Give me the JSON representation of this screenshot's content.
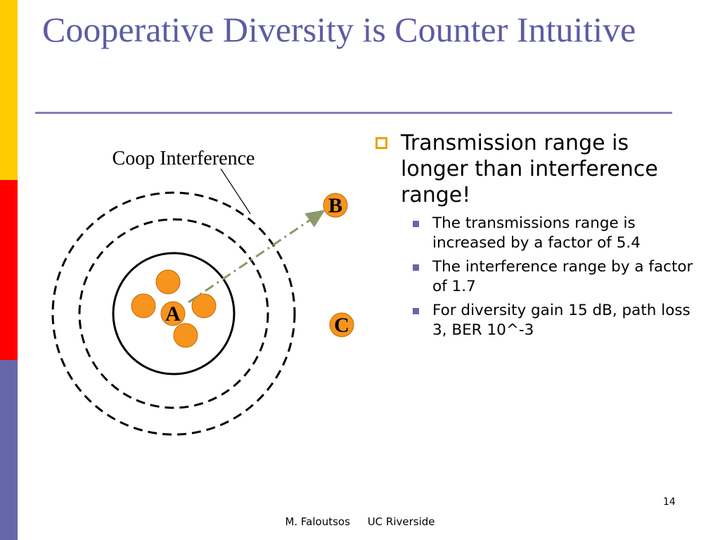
{
  "slide": {
    "title": "Cooperative Diversity is Counter Intuitive",
    "colors": {
      "title": "#5c5ca3",
      "sidebar": [
        "#ffcc00",
        "#ff0000",
        "#6666aa"
      ],
      "node": "#f7941d",
      "bullet": "#e8a400"
    }
  },
  "diagram": {
    "callout": "Coop Interference",
    "node_a": "A",
    "node_b": "B",
    "node_c": "C"
  },
  "bullets": {
    "main": "Transmission range is longer than interference range!",
    "sub": [
      "The transmissions range is increased by a factor of 5.4",
      "The interference range by a factor of 1.7",
      "For diversity gain 15 dB, path loss 3, BER 10^-3"
    ]
  },
  "footer": {
    "slide_number": "14",
    "author": "M. Faloutsos",
    "institution": "UC Riverside"
  }
}
